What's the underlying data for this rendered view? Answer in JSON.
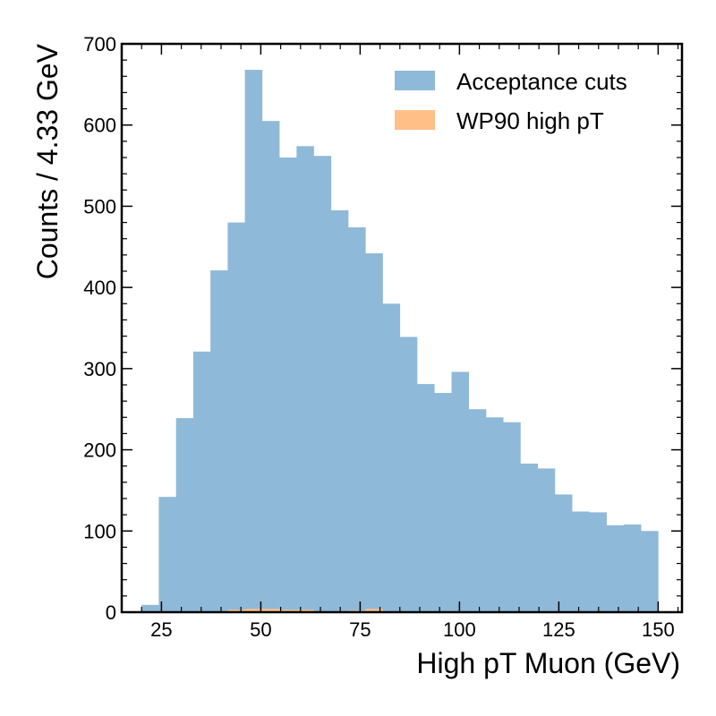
{
  "chart_data": {
    "type": "bar",
    "xlabel": "High pT Muon (GeV)",
    "ylabel": "Counts / 4.33 GeV",
    "xlim": [
      15,
      156
    ],
    "ylim": [
      0,
      700
    ],
    "xticks": [
      25,
      50,
      75,
      100,
      125,
      150
    ],
    "yticks": [
      0,
      100,
      200,
      300,
      400,
      500,
      600,
      700
    ],
    "legend_position": "top-right",
    "bin_edges": [
      20,
      24.33,
      28.67,
      33,
      37.33,
      41.67,
      46,
      50.33,
      54.67,
      59,
      63.33,
      67.67,
      72,
      76.33,
      80.67,
      85,
      89.33,
      93.67,
      98,
      102.33,
      106.67,
      111,
      115.33,
      119.67,
      124,
      128.33,
      132.67,
      137,
      141.33,
      145.67,
      150
    ],
    "series": [
      {
        "name": "Acceptance cuts",
        "color": "#8fb9d9",
        "values": [
          9,
          142,
          239,
          321,
          421,
          480,
          668,
          605,
          560,
          574,
          562,
          495,
          474,
          442,
          380,
          339,
          281,
          270,
          296,
          250,
          240,
          234,
          183,
          177,
          145,
          124,
          123,
          107,
          108,
          100
        ]
      },
      {
        "name": "WP90 high pT",
        "color": "#ffbf86",
        "values": [
          0,
          0,
          0,
          0,
          0,
          3,
          4,
          4,
          3,
          3,
          1,
          1,
          2,
          4,
          1,
          0,
          0,
          0,
          0,
          0,
          0,
          0,
          0,
          0,
          0,
          0,
          0,
          0,
          0,
          0
        ]
      }
    ]
  }
}
